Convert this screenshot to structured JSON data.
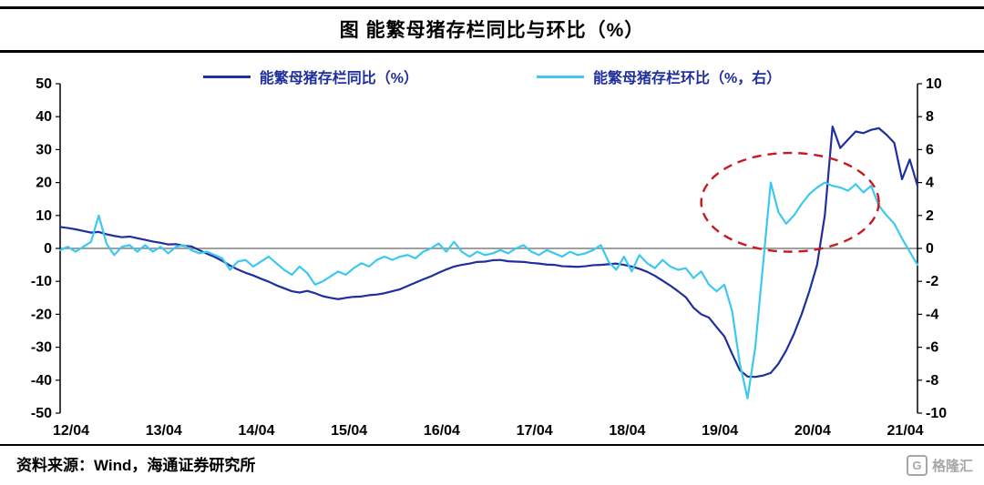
{
  "header": {
    "title": "图  能繁母猪存栏同比与环比（%）"
  },
  "legend": [
    {
      "label": "能繁母猪存栏同比（%）",
      "color": "#1f2f9e"
    },
    {
      "label": "能繁母猪存栏环比（%，右）",
      "color": "#3cc8f0"
    }
  ],
  "footer": {
    "source": "资料来源：Wind，海通证券研究所",
    "watermark": "格隆汇",
    "watermark_icon_letter": "G"
  },
  "chart_data": {
    "type": "line",
    "title": "能繁母猪存栏同比与环比（%）",
    "x_unit": "month",
    "x_start": "2012/04",
    "x_end": "2021/07",
    "x_tick_labels": [
      "12/04",
      "13/04",
      "14/04",
      "15/04",
      "16/04",
      "17/04",
      "18/04",
      "19/04",
      "20/04",
      "21/04"
    ],
    "x_tick_indices": [
      0,
      12,
      24,
      36,
      48,
      60,
      72,
      84,
      96,
      108
    ],
    "left_axis": {
      "min": -50,
      "max": 50,
      "ticks": [
        50,
        40,
        30,
        20,
        10,
        0,
        -10,
        -20,
        -30,
        -40,
        -50
      ]
    },
    "right_axis": {
      "min": -10,
      "max": 10,
      "ticks": [
        10,
        8,
        6,
        4,
        2,
        0,
        -2,
        -4,
        -6,
        -8,
        -10
      ]
    },
    "grid": "zero-line-only",
    "legend_position": "top",
    "series": [
      {
        "name": "能繁母猪存栏同比（%）",
        "axis": "left",
        "color": "#1f2f9e",
        "values": [
          6.5,
          6.2,
          5.8,
          5.3,
          4.8,
          5.0,
          4.3,
          3.8,
          3.4,
          3.6,
          3.1,
          2.6,
          2.1,
          1.7,
          1.2,
          1.3,
          0.8,
          0.6,
          -0.5,
          -1.6,
          -2.6,
          -3.8,
          -5.2,
          -6.4,
          -7.4,
          -8.2,
          -9.2,
          -10.1,
          -11.2,
          -12.1,
          -13.0,
          -13.4,
          -12.9,
          -13.6,
          -14.5,
          -15.0,
          -15.4,
          -15.0,
          -14.7,
          -14.6,
          -14.2,
          -14.0,
          -13.6,
          -13.0,
          -12.4,
          -11.4,
          -10.4,
          -9.4,
          -8.5,
          -7.4,
          -6.4,
          -5.5,
          -5.0,
          -4.6,
          -4.1,
          -4.0,
          -3.6,
          -3.5,
          -3.9,
          -4.0,
          -4.1,
          -4.4,
          -4.6,
          -4.9,
          -5.0,
          -5.4,
          -5.5,
          -5.6,
          -5.4,
          -5.1,
          -5.0,
          -4.8,
          -4.6,
          -5.0,
          -5.5,
          -6.2,
          -7.1,
          -8.3,
          -9.8,
          -11.3,
          -13.0,
          -14.8,
          -18.0,
          -20.0,
          -21.0,
          -23.9,
          -26.7,
          -32.0,
          -37.0,
          -38.9,
          -39.0,
          -38.6,
          -37.8,
          -35.0,
          -31.0,
          -26.0,
          -20.0,
          -13.0,
          -5.0,
          10.0,
          37.0,
          30.5,
          33.0,
          35.5,
          35.0,
          36.0,
          36.5,
          34.5,
          32.0,
          21.0,
          27.0,
          19.0
        ]
      },
      {
        "name": "能繁母猪存栏环比（%，右）",
        "axis": "right",
        "color": "#3cc8f0",
        "values": [
          -0.1,
          0.1,
          -0.2,
          0.1,
          0.4,
          2.0,
          0.3,
          -0.4,
          0.1,
          0.2,
          -0.2,
          0.2,
          -0.2,
          0.1,
          -0.3,
          0.1,
          0.2,
          -0.1,
          -0.3,
          -0.2,
          -0.4,
          -0.6,
          -1.3,
          -0.8,
          -0.7,
          -1.1,
          -0.8,
          -0.5,
          -0.9,
          -1.3,
          -1.6,
          -1.1,
          -1.5,
          -2.2,
          -2.0,
          -1.7,
          -1.4,
          -1.6,
          -1.2,
          -0.9,
          -1.1,
          -0.7,
          -0.5,
          -0.7,
          -0.5,
          -0.4,
          -0.6,
          -0.2,
          0.0,
          0.3,
          -0.2,
          0.4,
          -0.2,
          -0.5,
          -0.2,
          -0.4,
          -0.3,
          -0.1,
          -0.3,
          0.0,
          0.2,
          -0.2,
          -0.4,
          -0.1,
          -0.3,
          -0.5,
          -0.2,
          -0.4,
          -0.3,
          -0.1,
          0.2,
          -0.8,
          -1.3,
          -0.5,
          -1.4,
          -0.4,
          -0.9,
          -1.2,
          -0.7,
          -1.1,
          -1.3,
          -1.2,
          -1.8,
          -1.4,
          -2.2,
          -2.6,
          -2.2,
          -3.8,
          -7.0,
          -9.1,
          -6.0,
          -1.0,
          4.0,
          2.2,
          1.5,
          2.0,
          2.7,
          3.3,
          3.7,
          4.0,
          3.8,
          3.7,
          3.5,
          3.9,
          3.4,
          3.8,
          2.6,
          2.0,
          1.5,
          0.6,
          -0.2,
          -1.0
        ]
      }
    ],
    "annotation_ellipse": {
      "color": "#c8191e",
      "style": "dashed",
      "cx_index": 94.5,
      "cy_left_value": 14,
      "rx_months": 11.5,
      "ry_left_value": 15
    }
  }
}
